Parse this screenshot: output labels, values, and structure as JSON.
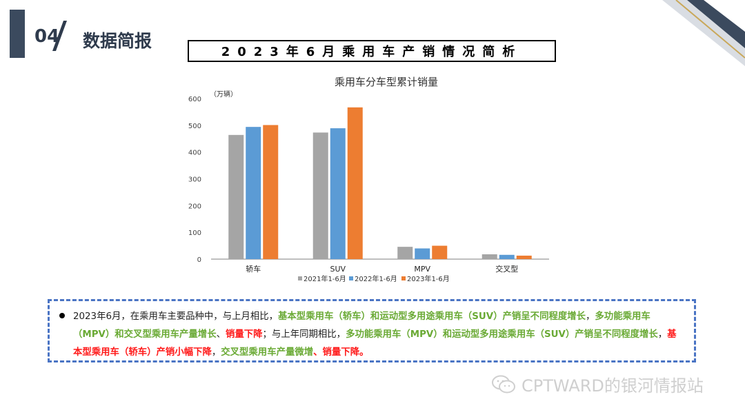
{
  "header": {
    "section_number": "04",
    "section_title": "数据简报",
    "headline": "2023年6月乘用车产销情况简析"
  },
  "chart_data": {
    "type": "bar",
    "title": "乘用车分车型累计销量",
    "unit": "（万辆）",
    "categories": [
      "轿车",
      "SUV",
      "MPV",
      "交叉型"
    ],
    "ylim": [
      0,
      600
    ],
    "yticks": [
      0,
      100,
      200,
      300,
      400,
      500,
      600
    ],
    "grid": false,
    "legend_position": "bottom",
    "series": [
      {
        "name": "2021年1-6月",
        "color": "#a5a5a5",
        "values": [
          464,
          473,
          46,
          18
        ]
      },
      {
        "name": "2022年1-6月",
        "color": "#5b9bd5",
        "values": [
          494,
          489,
          40,
          16
        ]
      },
      {
        "name": "2023年1-6月",
        "color": "#ed7d31",
        "values": [
          501,
          567,
          50,
          13
        ]
      }
    ]
  },
  "note": {
    "parts": [
      {
        "text": "2023年6月，在乘用车主要品种中，与上月相比，",
        "style": "n"
      },
      {
        "text": "基本型乘用车（轿车）和运动型多用途乘用车（SUV）产销呈不同程度增长",
        "style": "g"
      },
      {
        "text": "，",
        "style": "n"
      },
      {
        "text": "多功能乘用车（MPV）和交叉型乘用车产量增长",
        "style": "g"
      },
      {
        "text": "、",
        "style": "n"
      },
      {
        "text": "销量下降",
        "style": "r"
      },
      {
        "text": "；与上年同期相比，",
        "style": "n"
      },
      {
        "text": "多功能乘用车（MPV）和运动型多用途乘用车（SUV）产销呈不同程度增长",
        "style": "g"
      },
      {
        "text": "，",
        "style": "n"
      },
      {
        "text": "基本型乘用车（轿车）产销小幅下降",
        "style": "r"
      },
      {
        "text": "，",
        "style": "n"
      },
      {
        "text": "交叉型乘用车产量微增",
        "style": "g"
      },
      {
        "text": "、销量下降。",
        "style": "r"
      }
    ]
  },
  "watermark": {
    "text": "CPTWARD的银河情报站",
    "icon": "wechat-icon"
  }
}
